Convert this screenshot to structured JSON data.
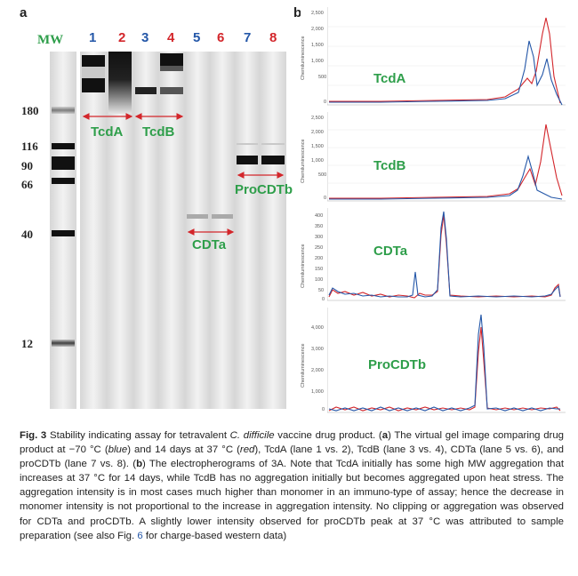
{
  "panel_a": {
    "letter": "a",
    "mw_label": "MW",
    "lanes": [
      {
        "num": "1",
        "color": "blue"
      },
      {
        "num": "2",
        "color": "red"
      },
      {
        "num": "3",
        "color": "blue"
      },
      {
        "num": "4",
        "color": "red"
      },
      {
        "num": "5",
        "color": "blue"
      },
      {
        "num": "6",
        "color": "red"
      },
      {
        "num": "7",
        "color": "blue"
      },
      {
        "num": "8",
        "color": "red"
      }
    ],
    "mw_markers": [
      "180",
      "116",
      "90",
      "66",
      "40",
      "12"
    ],
    "group_labels": {
      "tcda": "TcdA",
      "tcdb": "TcdB",
      "cdta": "CDTa",
      "procdtb": "ProCDTb"
    }
  },
  "panel_b": {
    "letter": "b",
    "panels": [
      {
        "title": "TcdA",
        "ylabel": "Chemiluminescence",
        "yticks": [
          "2,500",
          "2,000",
          "1,500",
          "1,000",
          "500",
          "0"
        ]
      },
      {
        "title": "TcdB",
        "ylabel": "Chemiluminescence",
        "yticks": [
          "2,500",
          "2,000",
          "1,500",
          "1,000",
          "500",
          "0"
        ]
      },
      {
        "title": "CDTa",
        "ylabel": "Chemiluminescence",
        "yticks": [
          "400",
          "350",
          "300",
          "250",
          "200",
          "150",
          "100",
          "50",
          "0"
        ]
      },
      {
        "title": "ProCDTb",
        "ylabel": "Chemiluminescence",
        "yticks": [
          "4,000",
          "3,000",
          "2,000",
          "1,000",
          "0"
        ]
      }
    ]
  },
  "colors": {
    "blue": "#2457a8",
    "red": "#d3262b",
    "green": "#2e9e4a"
  },
  "caption": {
    "fig": "Fig. 3",
    "t1": " Stability indicating assay for tetravalent ",
    "species": "C. difficile",
    "t2": " vaccine drug product. (",
    "a": "a",
    "t3": ") The virtual gel image comparing drug product at −70 °C (",
    "blue": "blue",
    "t4": ") and 14 days at 37 °C (",
    "red": "red",
    "t5": "), TcdA (lane 1 vs. 2), TcdB (lane 3 vs. 4), CDTa (lane 5 vs. 6), and proCDTb (lane 7 vs. 8). (",
    "b": "b",
    "t6": ") The electropherograms of 3A. Note that TcdA initially has some high MW aggregation that increases at 37 °C for 14 days, while TcdB has no aggregation initially but becomes aggregated upon heat stress. The aggregation intensity is in most cases much higher than monomer in an immuno-type of assay; hence the decrease in monomer intensity is not proportional to the increase in aggregation intensity. No clipping or aggregation was observed for CDTa and proCDTb. A slightly lower intensity observed for proCDTb peak at 37 °C was attributed to sample preparation (see also Fig. ",
    "figref": "6",
    "t7": " for charge-based western data)"
  }
}
